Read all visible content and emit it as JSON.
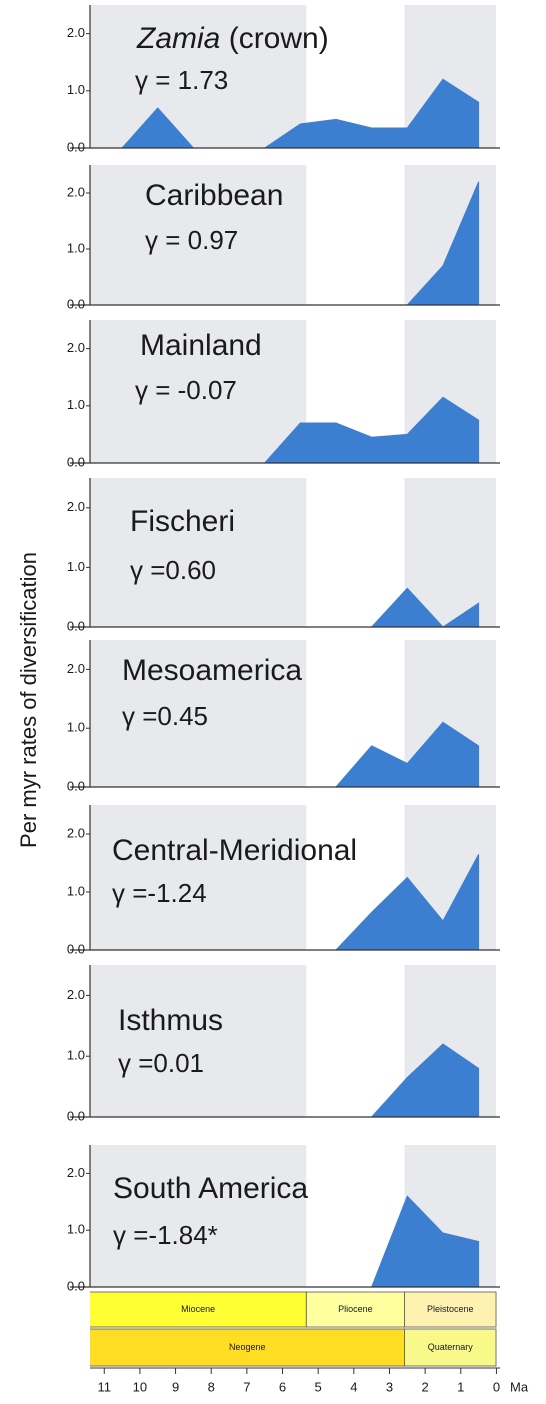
{
  "axis": {
    "xlim": [
      11.4,
      -0.1
    ],
    "xticks": [
      11,
      10,
      9,
      8,
      7,
      6,
      5,
      4,
      3,
      2,
      1,
      0
    ],
    "xlabel": "Ma",
    "ylabel": "Per myr rates of diversification"
  },
  "timescale": {
    "epochs": [
      {
        "name": "Miocene",
        "start": 23.03,
        "end": 5.333,
        "color": "#ffff33",
        "shaded": true
      },
      {
        "name": "Pliocene",
        "start": 5.333,
        "end": 2.58,
        "color": "#ffffa0",
        "shaded": false
      },
      {
        "name": "Pleistocene",
        "start": 2.58,
        "end": 0.0117,
        "color": "#fff2b0",
        "shaded": true
      }
    ],
    "periods": [
      {
        "name": "Neogene",
        "start": 23.03,
        "end": 2.58,
        "color": "#ffdd22"
      },
      {
        "name": "Quaternary",
        "start": 2.58,
        "end": 0.0117,
        "color": "#f9f98a"
      }
    ]
  },
  "chart_data": [
    {
      "type": "area",
      "title": "Zamia",
      "title_suffix": "(crown)",
      "annotation": "γ = 1.73",
      "color": "#3c7fd0",
      "ylim": [
        0,
        2.5
      ],
      "yticks": [
        {
          "value": 0,
          "label": "0.0"
        },
        {
          "value": 1,
          "label": "1.0"
        },
        {
          "value": 2,
          "label": "2.0"
        }
      ],
      "x": [
        10.5,
        9.5,
        8.5,
        7.5,
        6.5,
        5.5,
        4.5,
        3.5,
        2.5,
        1.5,
        0.5
      ],
      "values": [
        0,
        0.7,
        0,
        0,
        0,
        0.42,
        0.5,
        0.35,
        0.35,
        1.2,
        0.8
      ]
    },
    {
      "type": "area",
      "title": "Caribbean",
      "annotation": "γ = 0.97",
      "color": "#3c7fd0",
      "ylim": [
        0,
        2.5
      ],
      "yticks": [
        {
          "value": 0,
          "label": "0.0"
        },
        {
          "value": 1,
          "label": "1.0"
        },
        {
          "value": 2,
          "label": "2.0"
        }
      ],
      "x": [
        2.5,
        1.5,
        0.5
      ],
      "values": [
        0,
        0.7,
        2.2
      ]
    },
    {
      "type": "area",
      "title": "Mainland",
      "annotation": "γ = -0.07",
      "color": "#3c7fd0",
      "ylim": [
        0,
        2.5
      ],
      "yticks": [
        {
          "value": 0,
          "label": "0.0"
        },
        {
          "value": 1,
          "label": "1.0"
        },
        {
          "value": 2,
          "label": "2.0"
        }
      ],
      "x": [
        6.5,
        5.5,
        4.5,
        3.5,
        2.5,
        1.5,
        0.5
      ],
      "values": [
        0,
        0.7,
        0.7,
        0.45,
        0.5,
        1.15,
        0.75
      ]
    },
    {
      "type": "area",
      "title": "Fischeri",
      "annotation": "γ =0.60",
      "color": "#3c7fd0",
      "ylim": [
        0,
        2.5
      ],
      "yticks": [
        {
          "value": 0,
          "label": "0.0"
        },
        {
          "value": 1,
          "label": "1.0"
        },
        {
          "value": 2,
          "label": "2.0"
        }
      ],
      "x": [
        3.5,
        2.5,
        1.5,
        0.5
      ],
      "values": [
        0,
        0.65,
        0,
        0.4
      ]
    },
    {
      "type": "area",
      "title": "Mesoamerica",
      "annotation": "γ =0.45",
      "color": "#3c7fd0",
      "ylim": [
        0,
        2.5
      ],
      "yticks": [
        {
          "value": 0,
          "label": "0.0"
        },
        {
          "value": 1,
          "label": "1.0"
        },
        {
          "value": 2,
          "label": "2.0"
        }
      ],
      "x": [
        4.5,
        3.5,
        2.5,
        1.5,
        0.5
      ],
      "values": [
        0,
        0.7,
        0.4,
        1.1,
        0.7
      ]
    },
    {
      "type": "area",
      "title": "Central-Meridional",
      "annotation": "γ =-1.24",
      "color": "#3c7fd0",
      "ylim": [
        0,
        2.5
      ],
      "yticks": [
        {
          "value": 0,
          "label": "0.0"
        },
        {
          "value": 1,
          "label": "1.0"
        },
        {
          "value": 2,
          "label": "2.0"
        }
      ],
      "x": [
        4.5,
        3.5,
        2.5,
        1.5,
        0.5
      ],
      "values": [
        0,
        0.65,
        1.25,
        0.5,
        1.65
      ]
    },
    {
      "type": "area",
      "title": "Isthmus",
      "annotation": "γ =0.01",
      "color": "#3c7fd0",
      "ylim": [
        0,
        2.5
      ],
      "yticks": [
        {
          "value": 0,
          "label": "0.0"
        },
        {
          "value": 1,
          "label": "1.0"
        },
        {
          "value": 2,
          "label": "2.0"
        }
      ],
      "x": [
        3.5,
        2.5,
        1.5,
        0.5
      ],
      "values": [
        0,
        0.65,
        1.2,
        0.8
      ]
    },
    {
      "type": "area",
      "title": "South America",
      "annotation": "γ =-1.84*",
      "color": "#3c7fd0",
      "ylim": [
        0,
        2.5
      ],
      "yticks": [
        {
          "value": 0,
          "label": "0.0"
        },
        {
          "value": 1,
          "label": "1.0"
        },
        {
          "value": 2,
          "label": "2.0"
        }
      ],
      "x": [
        3.5,
        2.5,
        1.5,
        0.5
      ],
      "values": [
        0,
        1.6,
        0.95,
        0.8
      ]
    }
  ]
}
